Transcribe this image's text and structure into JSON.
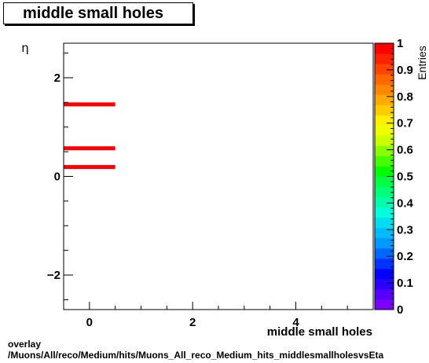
{
  "page": {
    "footer_line1": "overlay",
    "footer_line2": "/Muons/All/reco/Medium/hits/Muons_All_reco_Medium_hits_middlesmallholesvsEta"
  },
  "chart_data": {
    "type": "heatmap",
    "title": "middle small holes",
    "xlabel": "middle small holes",
    "ylabel": "η",
    "zlabel": "Entries",
    "xlim": [
      -0.5,
      5.5
    ],
    "ylim": [
      -2.7,
      2.7
    ],
    "zlim": [
      0,
      1
    ],
    "x_ticks": [
      0,
      2,
      4
    ],
    "y_ticks": [
      -2,
      0,
      2
    ],
    "z_ticks": [
      0,
      0.1,
      0.2,
      0.3,
      0.4,
      0.5,
      0.6,
      0.7,
      0.8,
      0.9,
      1
    ],
    "grid": false,
    "cells": [
      {
        "x": [
          -0.5,
          0.5
        ],
        "y": [
          1.42,
          1.5
        ],
        "z": 1
      },
      {
        "x": [
          -0.5,
          0.5
        ],
        "y": [
          0.53,
          0.61
        ],
        "z": 1
      },
      {
        "x": [
          -0.5,
          0.5
        ],
        "y": [
          0.15,
          0.23
        ],
        "z": 1
      }
    ],
    "palette": [
      "#7a00ff",
      "#5500ff",
      "#2a00ff",
      "#0000ff",
      "#0033ff",
      "#0066ff",
      "#0099ff",
      "#00bbff",
      "#00ddee",
      "#00ffdd",
      "#00ffaa",
      "#00ff77",
      "#00ff44",
      "#00ff00",
      "#44ff00",
      "#88ff00",
      "#ccff00",
      "#eeff00",
      "#ffee00",
      "#ffcc00",
      "#ffaa00",
      "#ff8800",
      "#ff6600",
      "#ff4400",
      "#ff2200",
      "#ff0000"
    ]
  }
}
